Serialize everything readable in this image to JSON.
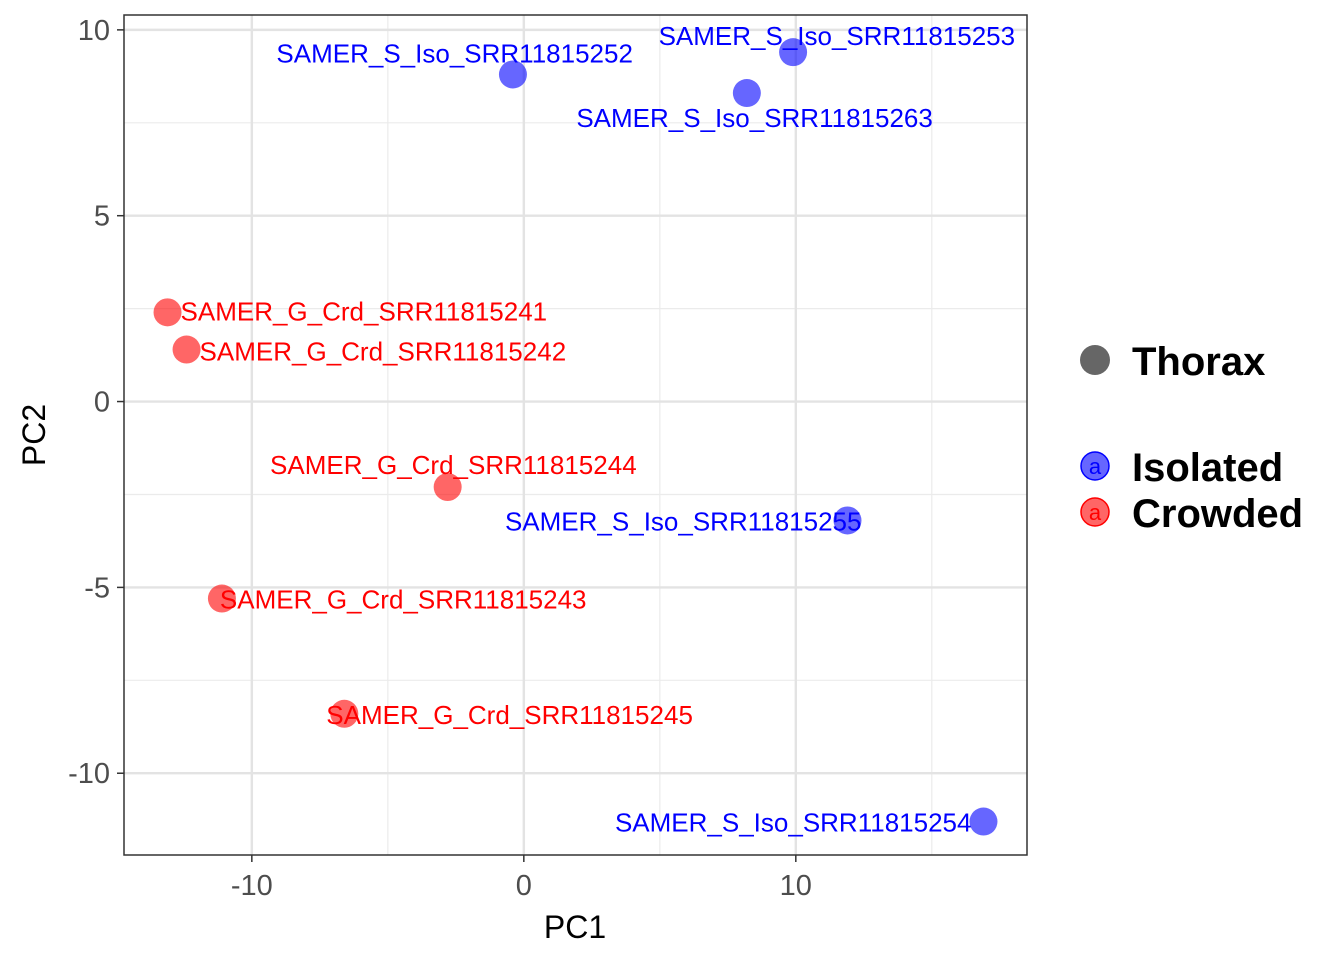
{
  "chart_data": {
    "type": "scatter",
    "title": "",
    "xlabel": "PC1",
    "ylabel": "PC2",
    "xlim": [
      -14.7,
      18.5
    ],
    "ylim": [
      -12.2,
      10.4
    ],
    "x_ticks": [
      -10,
      0,
      10
    ],
    "x_tick_labels": [
      "-10",
      "0",
      "10"
    ],
    "y_ticks": [
      -10,
      -5,
      0,
      5,
      10
    ],
    "y_tick_labels": [
      "-10",
      "-5",
      "0",
      "5",
      "10"
    ],
    "grid": true,
    "legend_position": "right",
    "shape_legend": {
      "label": "Thorax",
      "color": "#666666"
    },
    "series": [
      {
        "name": "Isolated",
        "color": "#0000ff",
        "points": [
          {
            "x": -0.4,
            "y": 8.8,
            "label": "SAMER_S_Iso_SRR11815252",
            "anchor": "end",
            "dx": 120,
            "dy": -21
          },
          {
            "x": 9.9,
            "y": 9.4,
            "label": "SAMER_S_Iso_SRR11815253",
            "anchor": "end",
            "dx": 222,
            "dy": -16
          },
          {
            "x": 8.2,
            "y": 8.3,
            "label": "SAMER_S_Iso_SRR11815263",
            "anchor": "end",
            "dx": 186,
            "dy": 25
          },
          {
            "x": 11.9,
            "y": -3.2,
            "label": "SAMER_S_Iso_SRR11815255",
            "anchor": "end",
            "dx": 14,
            "dy": 1
          },
          {
            "x": 16.9,
            "y": -11.3,
            "label": "SAMER_S_Iso_SRR11815254",
            "anchor": "end",
            "dx": -12,
            "dy": 1
          }
        ]
      },
      {
        "name": "Crowded",
        "color": "#ff0000",
        "points": [
          {
            "x": -13.1,
            "y": 2.4,
            "label": "SAMER_G_Crd_SRR11815241",
            "anchor": "start",
            "dx": 13,
            "dy": -1
          },
          {
            "x": -12.4,
            "y": 1.4,
            "label": "SAMER_G_Crd_SRR11815242",
            "anchor": "start",
            "dx": 13,
            "dy": 2
          },
          {
            "x": -2.8,
            "y": -2.3,
            "label": "SAMER_G_Crd_SRR11815244",
            "anchor": "end",
            "dx": 189,
            "dy": -22
          },
          {
            "x": -11.1,
            "y": -5.3,
            "label": "SAMER_G_Crd_SRR11815243",
            "anchor": "start",
            "dx": -2,
            "dy": 1
          },
          {
            "x": -6.6,
            "y": -8.4,
            "label": "SAMER_G_Crd_SRR11815245",
            "anchor": "start",
            "dx": -18,
            "dy": 1
          }
        ]
      }
    ],
    "color_legend": {
      "glyph": "a",
      "items": [
        "Isolated",
        "Crowded"
      ]
    }
  }
}
